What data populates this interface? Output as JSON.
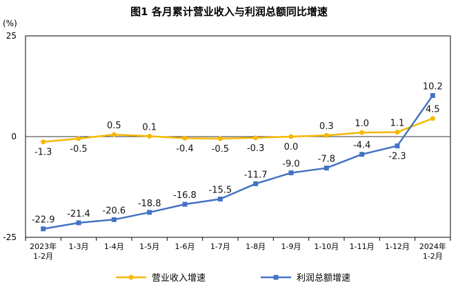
{
  "chart_data": {
    "type": "line",
    "title": "图1  各月累计营业收入与利润总额同比增速",
    "ylabel": "(%)",
    "ylim": [
      -25,
      25
    ],
    "yticks": [
      "25",
      "0",
      "-25"
    ],
    "categories": [
      [
        "2023年",
        "1-2月"
      ],
      [
        "1-3月"
      ],
      [
        "1-4月"
      ],
      [
        "1-5月"
      ],
      [
        "1-6月"
      ],
      [
        "1-7月"
      ],
      [
        "1-8月"
      ],
      [
        "1-9月"
      ],
      [
        "1-10月"
      ],
      [
        "1-11月"
      ],
      [
        "1-12月"
      ],
      [
        "2024年",
        "1-2月"
      ]
    ],
    "series": [
      {
        "name": "营业收入增速",
        "color": "#F5B800",
        "values": [
          -1.3,
          -0.5,
          0.5,
          0.1,
          -0.4,
          -0.5,
          -0.3,
          0.0,
          0.3,
          1.0,
          1.1,
          4.5
        ],
        "labels": [
          "-1.3",
          "-0.5",
          "0.5",
          "0.1",
          "-0.4",
          "-0.5",
          "-0.3",
          "0.0",
          "0.3",
          "1.0",
          "1.1",
          "4.5"
        ],
        "label_pos": [
          "below",
          "below",
          "above",
          "above",
          "below",
          "below",
          "below",
          "below",
          "above",
          "above",
          "above",
          "above"
        ]
      },
      {
        "name": "利润总额增速",
        "color": "#4472C4",
        "values": [
          -22.9,
          -21.4,
          -20.6,
          -18.8,
          -16.8,
          -15.5,
          -11.7,
          -9.0,
          -7.8,
          -4.4,
          -2.3,
          10.2
        ],
        "labels": [
          "-22.9",
          "-21.4",
          "-20.6",
          "-18.8",
          "-16.8",
          "-15.5",
          "-11.7",
          "-9.0",
          "-7.8",
          "-4.4",
          "-2.3",
          "10.2"
        ],
        "label_pos": [
          "above",
          "above",
          "above",
          "above",
          "above",
          "above",
          "above",
          "above",
          "above",
          "above",
          "below",
          "above"
        ]
      }
    ],
    "legend_position": "bottom",
    "grid": false
  }
}
